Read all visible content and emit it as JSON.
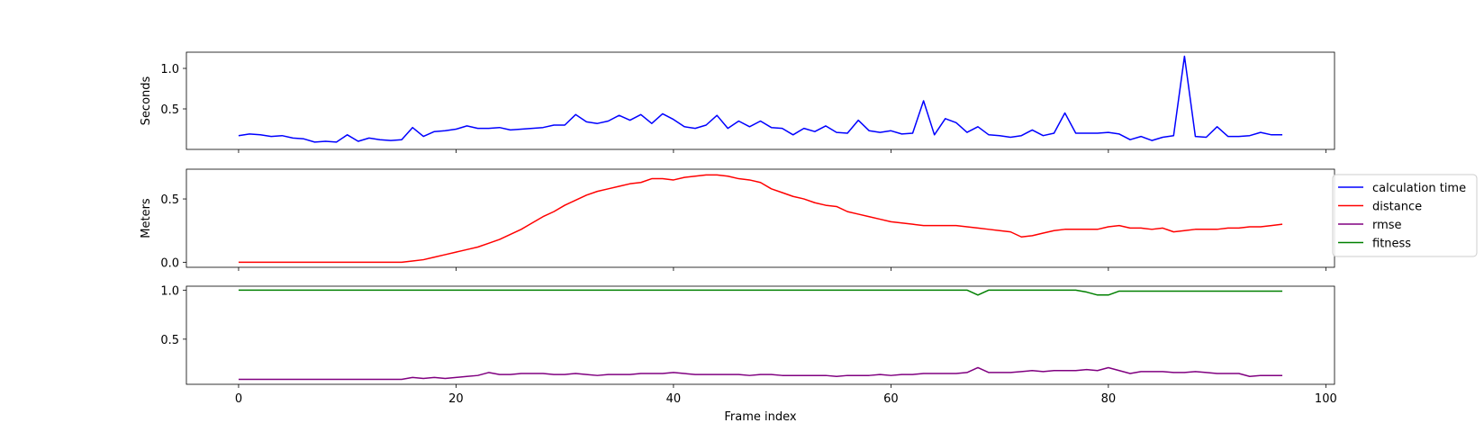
{
  "chart_data": [
    {
      "type": "line",
      "ylabel": "Seconds",
      "xlim": [
        -4.8,
        100.8
      ],
      "ylim": [
        0.0,
        1.2
      ],
      "yticks": [
        {
          "value": 0.5,
          "label": "0.5"
        },
        {
          "value": 1.0,
          "label": "1.0"
        }
      ],
      "show_x_tick_labels": false,
      "series": [
        {
          "name": "calculation time",
          "color": "#0000ff",
          "x_start": 0,
          "values": [
            0.17,
            0.19,
            0.18,
            0.16,
            0.17,
            0.14,
            0.13,
            0.09,
            0.1,
            0.09,
            0.18,
            0.1,
            0.14,
            0.12,
            0.11,
            0.12,
            0.27,
            0.16,
            0.22,
            0.23,
            0.25,
            0.29,
            0.26,
            0.26,
            0.27,
            0.24,
            0.25,
            0.26,
            0.27,
            0.3,
            0.3,
            0.43,
            0.34,
            0.32,
            0.35,
            0.42,
            0.36,
            0.43,
            0.32,
            0.44,
            0.37,
            0.28,
            0.26,
            0.3,
            0.42,
            0.26,
            0.35,
            0.28,
            0.35,
            0.27,
            0.26,
            0.18,
            0.26,
            0.22,
            0.29,
            0.21,
            0.2,
            0.36,
            0.23,
            0.21,
            0.23,
            0.19,
            0.2,
            0.6,
            0.18,
            0.38,
            0.33,
            0.21,
            0.28,
            0.18,
            0.17,
            0.15,
            0.17,
            0.24,
            0.17,
            0.2,
            0.45,
            0.2,
            0.2,
            0.2,
            0.21,
            0.19,
            0.12,
            0.16,
            0.11,
            0.15,
            0.17,
            1.15,
            0.16,
            0.15,
            0.28,
            0.16,
            0.16,
            0.17,
            0.21,
            0.18,
            0.18
          ]
        }
      ]
    },
    {
      "type": "line",
      "ylabel": "Meters",
      "xlim": [
        -4.8,
        100.8
      ],
      "ylim": [
        -0.04,
        0.735
      ],
      "yticks": [
        {
          "value": 0.0,
          "label": "0.0"
        },
        {
          "value": 0.5,
          "label": "0.5"
        }
      ],
      "show_x_tick_labels": false,
      "series": [
        {
          "name": "distance",
          "color": "#ff0000",
          "x_start": 0,
          "values": [
            0.0,
            0.0,
            0.0,
            0.0,
            0.0,
            0.0,
            0.0,
            0.0,
            0.0,
            0.0,
            0.0,
            0.0,
            0.0,
            0.0,
            0.0,
            0.0,
            0.01,
            0.02,
            0.04,
            0.06,
            0.08,
            0.1,
            0.12,
            0.15,
            0.18,
            0.22,
            0.26,
            0.31,
            0.36,
            0.4,
            0.45,
            0.49,
            0.53,
            0.56,
            0.58,
            0.6,
            0.62,
            0.63,
            0.66,
            0.66,
            0.65,
            0.67,
            0.68,
            0.69,
            0.69,
            0.68,
            0.66,
            0.65,
            0.63,
            0.58,
            0.55,
            0.52,
            0.5,
            0.47,
            0.45,
            0.44,
            0.4,
            0.38,
            0.36,
            0.34,
            0.32,
            0.31,
            0.3,
            0.29,
            0.29,
            0.29,
            0.29,
            0.28,
            0.27,
            0.26,
            0.25,
            0.24,
            0.2,
            0.21,
            0.23,
            0.25,
            0.26,
            0.26,
            0.26,
            0.26,
            0.28,
            0.29,
            0.27,
            0.27,
            0.26,
            0.27,
            0.24,
            0.25,
            0.26,
            0.26,
            0.26,
            0.27,
            0.27,
            0.28,
            0.28,
            0.29,
            0.3
          ]
        }
      ]
    },
    {
      "type": "line",
      "xlabel": "Frame index",
      "xlim": [
        -4.8,
        100.8
      ],
      "ylim": [
        0.04,
        1.04
      ],
      "yticks": [
        {
          "value": 0.5,
          "label": "0.5"
        },
        {
          "value": 1.0,
          "label": "1.0"
        }
      ],
      "xticks": [
        {
          "value": 0,
          "label": "0"
        },
        {
          "value": 20,
          "label": "20"
        },
        {
          "value": 40,
          "label": "40"
        },
        {
          "value": 60,
          "label": "60"
        },
        {
          "value": 80,
          "label": "80"
        },
        {
          "value": 100,
          "label": "100"
        }
      ],
      "show_x_tick_labels": true,
      "series": [
        {
          "name": "rmse",
          "color": "#800080",
          "x_start": 0,
          "values": [
            0.09,
            0.09,
            0.09,
            0.09,
            0.09,
            0.09,
            0.09,
            0.09,
            0.09,
            0.09,
            0.09,
            0.09,
            0.09,
            0.09,
            0.09,
            0.09,
            0.11,
            0.1,
            0.11,
            0.1,
            0.11,
            0.12,
            0.13,
            0.16,
            0.14,
            0.14,
            0.15,
            0.15,
            0.15,
            0.14,
            0.14,
            0.15,
            0.14,
            0.13,
            0.14,
            0.14,
            0.14,
            0.15,
            0.15,
            0.15,
            0.16,
            0.15,
            0.14,
            0.14,
            0.14,
            0.14,
            0.14,
            0.13,
            0.14,
            0.14,
            0.13,
            0.13,
            0.13,
            0.13,
            0.13,
            0.12,
            0.13,
            0.13,
            0.13,
            0.14,
            0.13,
            0.14,
            0.14,
            0.15,
            0.15,
            0.15,
            0.15,
            0.16,
            0.21,
            0.16,
            0.16,
            0.16,
            0.17,
            0.18,
            0.17,
            0.18,
            0.18,
            0.18,
            0.19,
            0.18,
            0.21,
            0.18,
            0.15,
            0.17,
            0.17,
            0.17,
            0.16,
            0.16,
            0.17,
            0.16,
            0.15,
            0.15,
            0.15,
            0.12,
            0.13,
            0.13,
            0.13
          ]
        },
        {
          "name": "fitness",
          "color": "#008000",
          "x_start": 0,
          "values": [
            1.0,
            1.0,
            1.0,
            1.0,
            1.0,
            1.0,
            1.0,
            1.0,
            1.0,
            1.0,
            1.0,
            1.0,
            1.0,
            1.0,
            1.0,
            1.0,
            1.0,
            1.0,
            1.0,
            1.0,
            1.0,
            1.0,
            1.0,
            1.0,
            1.0,
            1.0,
            1.0,
            1.0,
            1.0,
            1.0,
            1.0,
            1.0,
            1.0,
            1.0,
            1.0,
            1.0,
            1.0,
            1.0,
            1.0,
            1.0,
            1.0,
            1.0,
            1.0,
            1.0,
            1.0,
            1.0,
            1.0,
            1.0,
            1.0,
            1.0,
            1.0,
            1.0,
            1.0,
            1.0,
            1.0,
            1.0,
            1.0,
            1.0,
            1.0,
            1.0,
            1.0,
            1.0,
            1.0,
            1.0,
            1.0,
            1.0,
            1.0,
            1.0,
            0.95,
            1.0,
            1.0,
            1.0,
            1.0,
            1.0,
            1.0,
            1.0,
            1.0,
            1.0,
            0.98,
            0.95,
            0.95,
            0.99,
            0.99,
            0.99,
            0.99,
            0.99,
            0.99,
            0.99,
            0.99,
            0.99,
            0.99,
            0.99,
            0.99,
            0.99,
            0.99,
            0.99,
            0.99
          ]
        }
      ]
    }
  ],
  "legend": {
    "placement": "right",
    "items": [
      {
        "label": "calculation time",
        "color": "#0000ff"
      },
      {
        "label": "distance",
        "color": "#ff0000"
      },
      {
        "label": "rmse",
        "color": "#800080"
      },
      {
        "label": "fitness",
        "color": "#008000"
      }
    ]
  }
}
